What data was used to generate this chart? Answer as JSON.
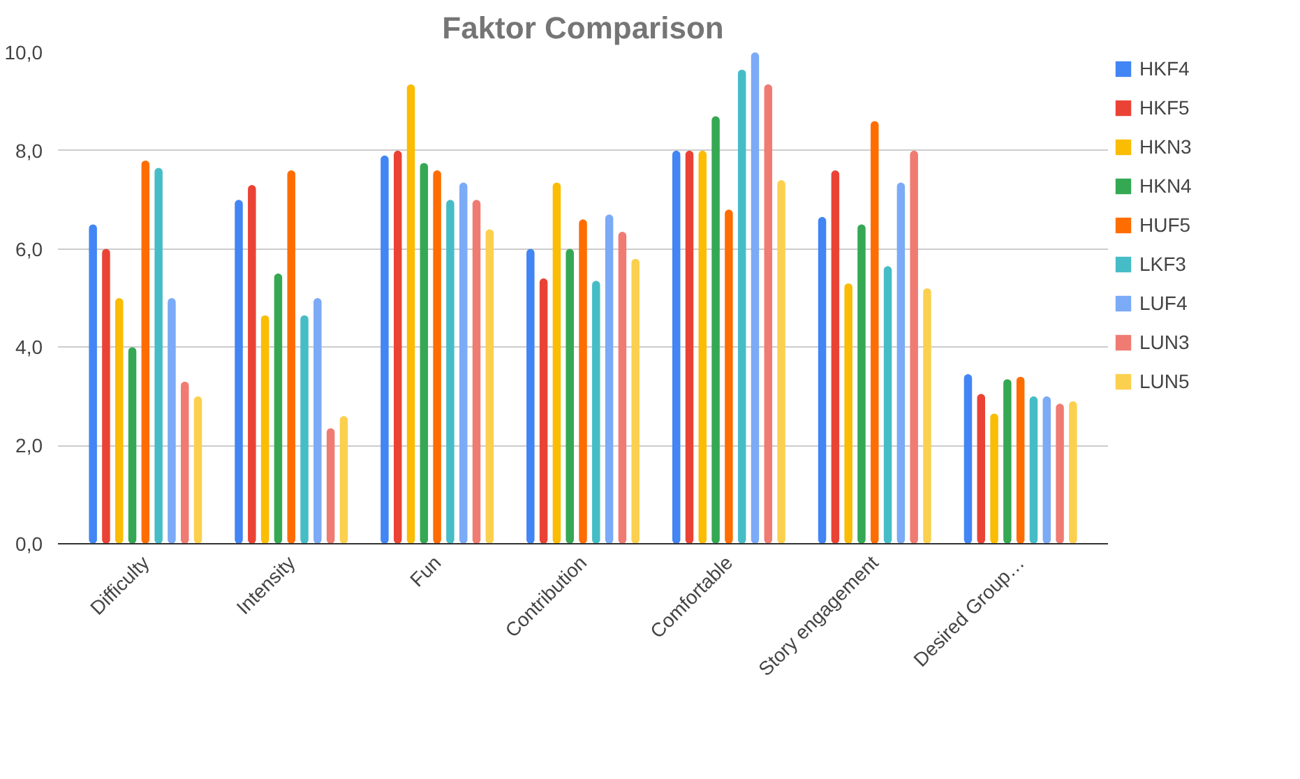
{
  "chart_data": {
    "type": "bar",
    "title": "Faktor Comparison",
    "categories": [
      "Difficulty",
      "Intensity",
      "Fun",
      "Contribution",
      "Comfortable",
      "Story engagement",
      "Desired Group…"
    ],
    "series": [
      {
        "name": "HKF4",
        "color": "#4285f4",
        "values": [
          6.5,
          7.0,
          7.9,
          6.0,
          8.0,
          6.65,
          3.45
        ]
      },
      {
        "name": "HKF5",
        "color": "#ea4335",
        "values": [
          6.0,
          7.3,
          8.0,
          5.4,
          8.0,
          7.6,
          3.05
        ]
      },
      {
        "name": "HKN3",
        "color": "#fbbc04",
        "values": [
          5.0,
          4.65,
          9.35,
          7.35,
          8.0,
          5.3,
          2.65
        ]
      },
      {
        "name": "HKN4",
        "color": "#34a853",
        "values": [
          4.0,
          5.5,
          7.75,
          6.0,
          8.7,
          6.5,
          3.35
        ]
      },
      {
        "name": "HUF5",
        "color": "#ff6d01",
        "values": [
          7.8,
          7.6,
          7.6,
          6.6,
          6.8,
          8.6,
          3.4
        ]
      },
      {
        "name": "LKF3",
        "color": "#46bdc6",
        "values": [
          7.65,
          4.65,
          7.0,
          5.35,
          9.65,
          5.65,
          3.0
        ]
      },
      {
        "name": "LUF4",
        "color": "#7baaf7",
        "values": [
          5.0,
          5.0,
          7.35,
          6.7,
          10.0,
          7.35,
          3.0
        ]
      },
      {
        "name": "LUN3",
        "color": "#f07b72",
        "values": [
          3.3,
          2.35,
          7.0,
          6.35,
          9.35,
          8.0,
          2.85
        ]
      },
      {
        "name": "LUN5",
        "color": "#fcd04f",
        "values": [
          3.0,
          2.6,
          6.4,
          5.8,
          7.4,
          5.2,
          2.9
        ]
      }
    ],
    "ylim": [
      0,
      10
    ],
    "yticks": [
      {
        "value": 0,
        "label": "0,0"
      },
      {
        "value": 2,
        "label": "2,0"
      },
      {
        "value": 4,
        "label": "4,0"
      },
      {
        "value": 6,
        "label": "6,0"
      },
      {
        "value": 8,
        "label": "8,0"
      },
      {
        "value": 10,
        "label": "10,0"
      }
    ],
    "grid": "y",
    "legend": "right"
  }
}
